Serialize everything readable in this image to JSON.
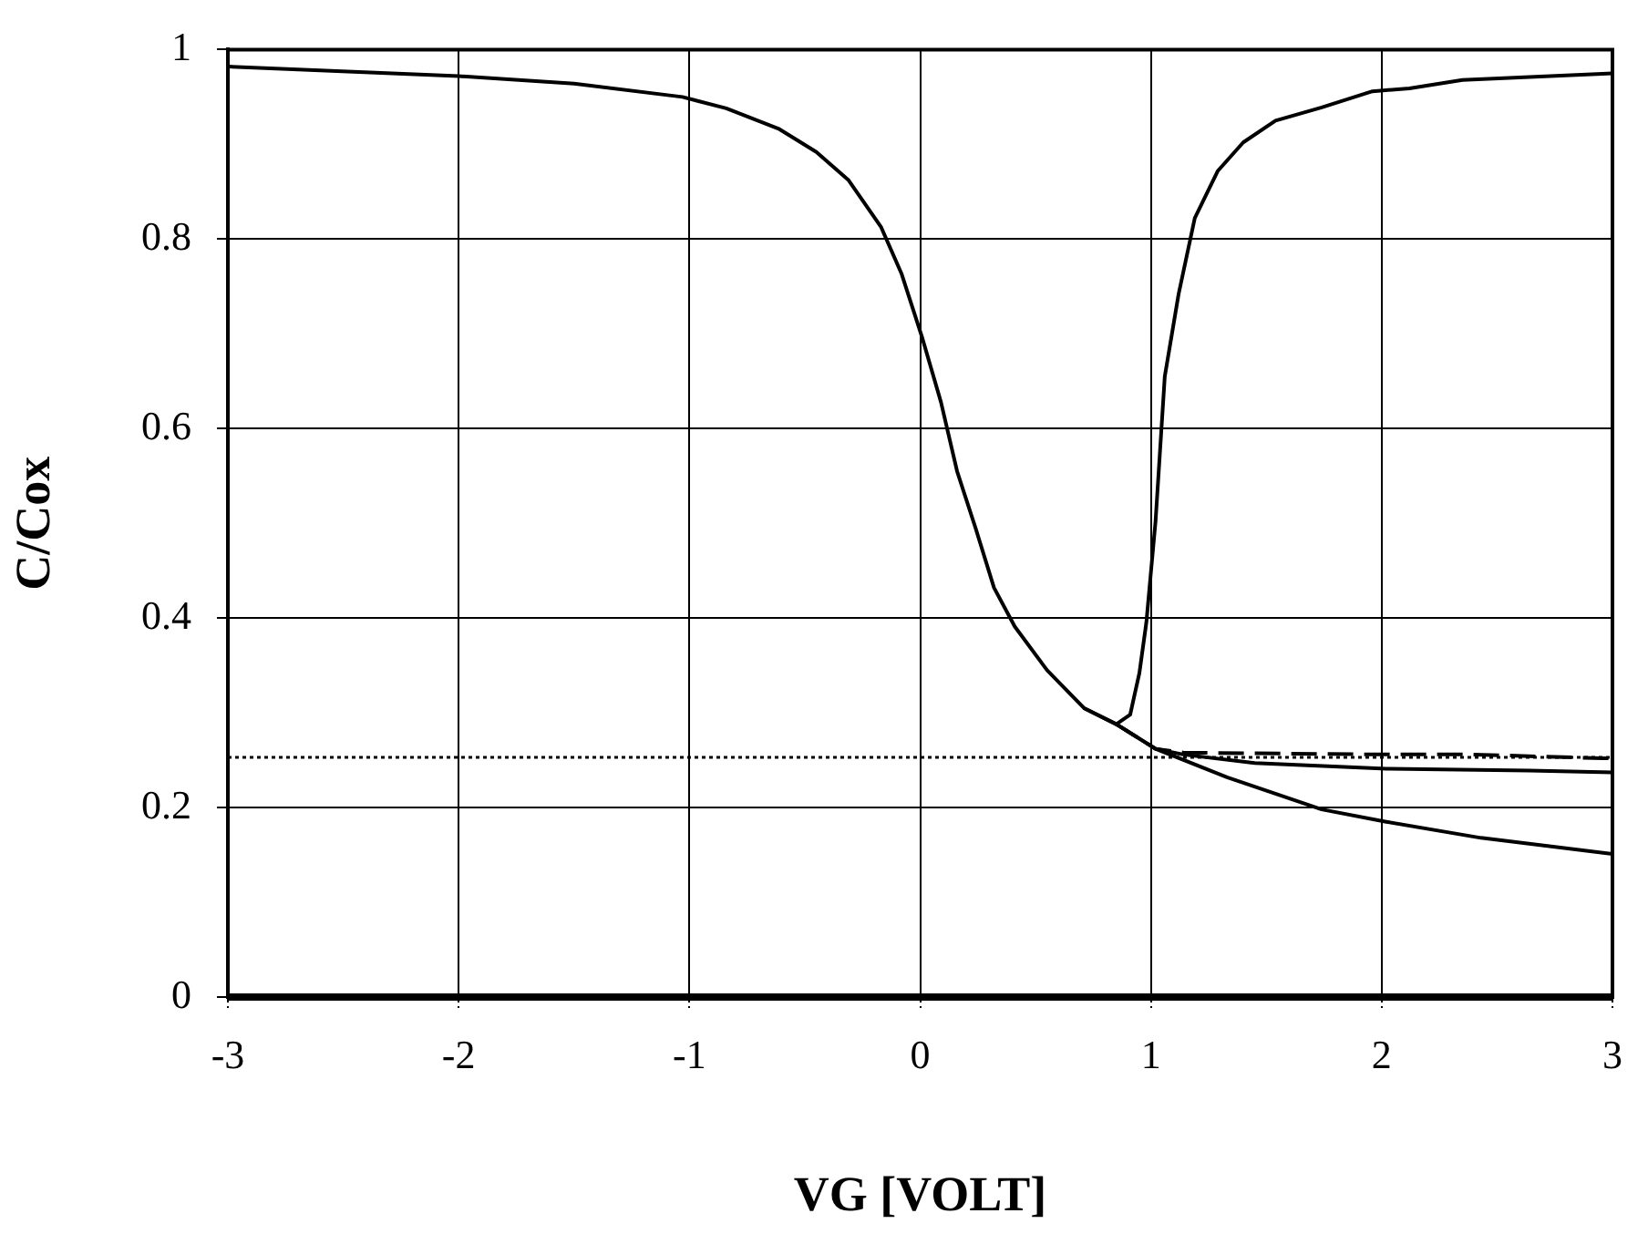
{
  "chart_data": {
    "type": "line",
    "xlabel": "VG [VOLT]",
    "ylabel": "C/Cox",
    "xlim": [
      -3,
      3
    ],
    "ylim": [
      0,
      1
    ],
    "xticks": [
      -3,
      -2,
      -1,
      0,
      1,
      2,
      3
    ],
    "yticks": [
      0,
      0.2,
      0.4,
      0.6,
      0.8,
      1
    ],
    "grid": true,
    "legend": false,
    "marker": "none",
    "series": [
      {
        "color": "#000000",
        "line_style": "solid",
        "x": [
          -3,
          -2,
          -1.5,
          -1.03,
          -0.84,
          -0.61,
          -0.45,
          -0.31,
          -0.17,
          -0.08,
          0.01,
          0.09,
          0.16,
          0.24,
          0.32,
          0.41,
          0.55,
          0.71,
          0.85,
          0.91,
          0.95,
          0.98,
          1.02,
          1.06,
          1.12,
          1.19,
          1.29,
          1.4,
          1.54,
          1.74,
          1.96,
          2.12,
          2.35,
          3
        ],
        "values": [
          0.982,
          0.972,
          0.964,
          0.95,
          0.938,
          0.916,
          0.892,
          0.862,
          0.813,
          0.763,
          0.695,
          0.628,
          0.555,
          0.495,
          0.432,
          0.391,
          0.345,
          0.305,
          0.288,
          0.298,
          0.342,
          0.395,
          0.502,
          0.655,
          0.742,
          0.822,
          0.872,
          0.902,
          0.925,
          0.939,
          0.956,
          0.959,
          0.968,
          0.975
        ]
      },
      {
        "color": "#000000",
        "line_style": "solid",
        "x": [
          0.71,
          0.85,
          1.02,
          1.33,
          1.74,
          2.02,
          2.43,
          3
        ],
        "values": [
          0.305,
          0.288,
          0.262,
          0.232,
          0.198,
          0.185,
          0.168,
          0.151
        ]
      },
      {
        "color": "#000000",
        "line_style": "solid",
        "x": [
          0.85,
          1.02,
          1.14,
          1.45,
          2.02,
          2.64,
          3
        ],
        "values": [
          0.288,
          0.262,
          0.256,
          0.247,
          0.241,
          0.239,
          0.237
        ]
      },
      {
        "color": "#000000",
        "line_style": "dashed",
        "x": [
          0.85,
          1.02,
          1.14,
          2.02,
          2.38,
          2.96,
          3
        ],
        "values": [
          0.288,
          0.262,
          0.258,
          0.256,
          0.256,
          0.252,
          0.252
        ]
      }
    ],
    "ref_lines": [
      {
        "axis": "y",
        "value": 0.253,
        "color": "#000000",
        "line_style": "dotted"
      }
    ]
  }
}
